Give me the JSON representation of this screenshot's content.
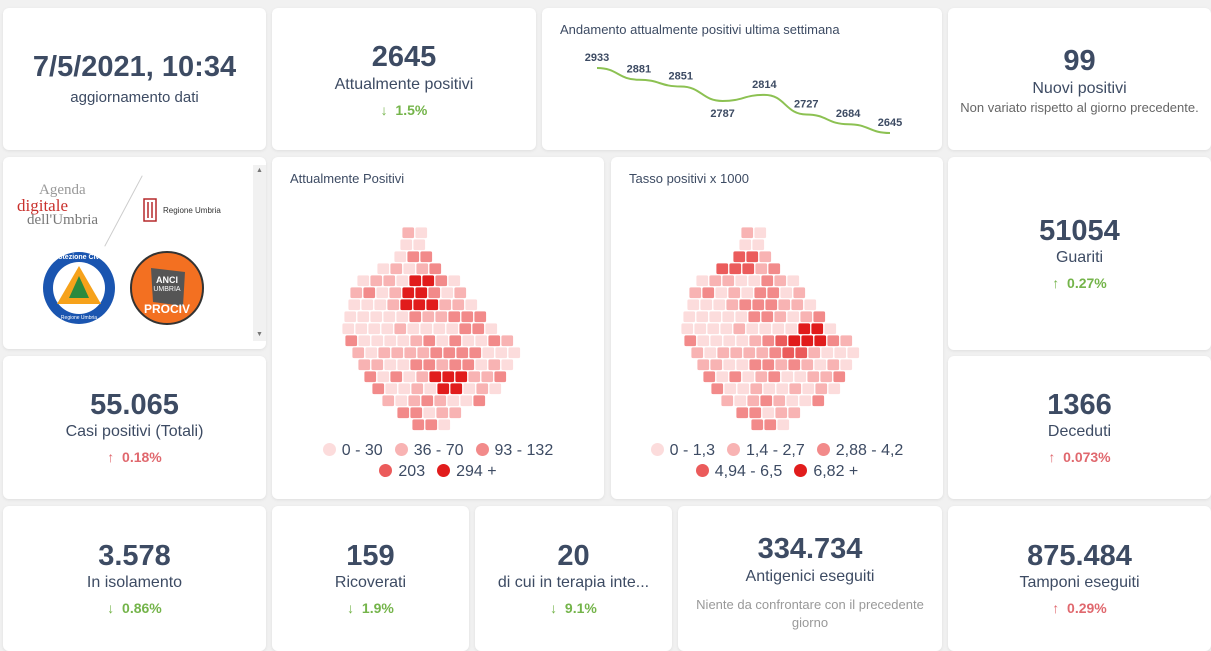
{
  "date": {
    "value": "7/5/2021, 10:34",
    "label": "aggiornamento dati"
  },
  "positivi": {
    "value": "2645",
    "label": "Attualmente positivi",
    "change": "1.5%",
    "dir": "down"
  },
  "trend": {
    "title": "Andamento attualmente positivi ultima settimana",
    "chart_data": {
      "type": "line",
      "values": [
        2933,
        2881,
        2851,
        2787,
        2814,
        2727,
        2684,
        2645
      ],
      "color": "#8cc152"
    }
  },
  "nuovi": {
    "value": "99",
    "label": "Nuovi positivi",
    "note": "Non variato rispetto al giorno precedente."
  },
  "logos": {
    "agenda_l1": "Agenda",
    "agenda_l2": "digitale",
    "agenda_l3": "dell'Umbria",
    "regione": "Regione Umbria",
    "protezione_top": "Protezione Civile",
    "protezione_bottom": "Regione Umbria",
    "anci_l1": "ANCI",
    "anci_l2": "UMBRIA",
    "anci_l3": "PROCIV"
  },
  "map1": {
    "title": "Attualmente Positivi",
    "legend": [
      {
        "label": "0 - 30",
        "color": "#fcdcdc"
      },
      {
        "label": "36 - 70",
        "color": "#f8b3b3"
      },
      {
        "label": "93 - 132",
        "color": "#f28a8a"
      },
      {
        "label": "203",
        "color": "#eb5b5b"
      },
      {
        "label": "294 +",
        "color": "#e11c1c"
      }
    ]
  },
  "map2": {
    "title": "Tasso positivi x 1000",
    "legend": [
      {
        "label": "0 - 1,3",
        "color": "#fcdcdc"
      },
      {
        "label": "1,4 - 2,7",
        "color": "#f8b3b3"
      },
      {
        "label": "2,88 - 4,2",
        "color": "#f28a8a"
      },
      {
        "label": "4,94 - 6,5",
        "color": "#eb5b5b"
      },
      {
        "label": "6,82 +",
        "color": "#e11c1c"
      }
    ]
  },
  "guariti": {
    "value": "51054",
    "label": "Guariti",
    "change": "0.27%",
    "dir": "up-green"
  },
  "totali": {
    "value": "55.065",
    "label": "Casi positivi (Totali)",
    "change": "0.18%",
    "dir": "up"
  },
  "deceduti": {
    "value": "1366",
    "label": "Deceduti",
    "change": "0.073%",
    "dir": "up"
  },
  "isolamento": {
    "value": "3.578",
    "label": "In isolamento",
    "change": "0.86%",
    "dir": "down"
  },
  "ricoverati": {
    "value": "159",
    "label": "Ricoverati",
    "change": "1.9%",
    "dir": "down"
  },
  "terapia": {
    "value": "20",
    "label": "di cui in terapia inte...",
    "change": "9.1%",
    "dir": "down"
  },
  "antigenici": {
    "value": "334.734",
    "label": "Antigenici eseguiti",
    "note": "Niente da confrontare con il precedente giorno"
  },
  "tamponi": {
    "value": "875.484",
    "label": "Tamponi eseguiti",
    "change": "0.29%",
    "dir": "up"
  }
}
